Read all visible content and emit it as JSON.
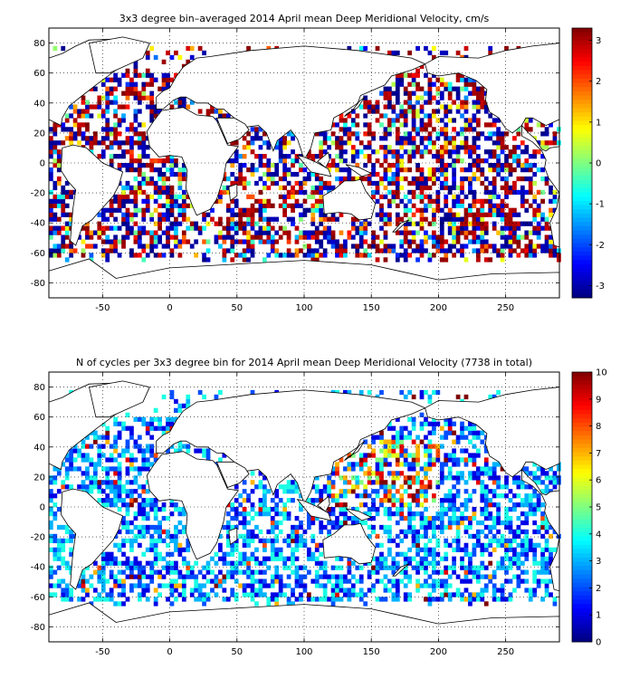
{
  "figure": {
    "background": "#ffffff"
  },
  "chart_data": [
    {
      "type": "heatmap",
      "title": "3x3 degree bin–averaged 2014 April mean Deep Meridional Velocity, cm/s",
      "xlim": [
        -90,
        290
      ],
      "ylim": [
        -90,
        90
      ],
      "xticks": [
        "-50",
        "0",
        "50",
        "100",
        "150",
        "200",
        "250"
      ],
      "yticks": [
        "80",
        "60",
        "40",
        "20",
        "0",
        "-20",
        "-40",
        "-60",
        "-80"
      ],
      "grid": "dotted",
      "bin_size_deg": 3,
      "colorbar": {
        "range": [
          -3.3,
          3.3
        ],
        "ticks": [
          "3",
          "2",
          "1",
          "0",
          "-1",
          "-2",
          "-3"
        ],
        "colormap": "jet"
      },
      "map": "world coastlines",
      "data_note": "Individual bin values are dense and not individually labeled."
    },
    {
      "type": "heatmap",
      "title": "N of cycles per 3x3 degree bin for 2014 April mean Deep Meridional Velocity (7738 in total)",
      "xlim": [
        -90,
        290
      ],
      "ylim": [
        -90,
        90
      ],
      "xticks": [
        "-50",
        "0",
        "50",
        "100",
        "150",
        "200",
        "250"
      ],
      "yticks": [
        "80",
        "60",
        "40",
        "20",
        "0",
        "-20",
        "-40",
        "-60",
        "-80"
      ],
      "grid": "dotted",
      "bin_size_deg": 3,
      "colorbar": {
        "range": [
          0,
          10
        ],
        "ticks": [
          "10",
          "9",
          "8",
          "7",
          "6",
          "5",
          "4",
          "3",
          "2",
          "1",
          "0"
        ],
        "colormap": "jet"
      },
      "map": "world coastlines",
      "total_cycles": 7738
    }
  ]
}
